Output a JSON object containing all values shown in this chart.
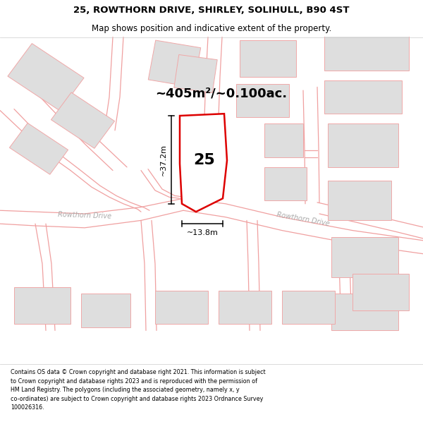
{
  "title_line1": "25, ROWTHORN DRIVE, SHIRLEY, SOLIHULL, B90 4ST",
  "title_line2": "Map shows position and indicative extent of the property.",
  "area_text": "~405m²/~0.100ac.",
  "property_number": "25",
  "dim_vertical": "~37.2m",
  "dim_horizontal": "~13.8m",
  "road_name_left": "Rowthorn Drive",
  "road_name_right": "Rowthorn Drive",
  "footer_text": "Contains OS data © Crown copyright and database right 2021. This information is subject\nto Crown copyright and database rights 2023 and is reproduced with the permission of\nHM Land Registry. The polygons (including the associated geometry, namely x, y\nco-ordinates) are subject to Crown copyright and database rights 2023 Ordnance Survey\n100026316.",
  "bg_color": "#f2f0ed",
  "property_fill": "#ffffff",
  "property_edge": "#dd0000",
  "building_fill": "#dedede",
  "building_edge": "#f0a8a8",
  "road_line_color": "#f0a0a0",
  "road_fill": "#ffffff",
  "title_fontsize": 9.5,
  "subtitle_fontsize": 8.5,
  "area_fontsize": 13,
  "number_fontsize": 16,
  "dim_fontsize": 8,
  "road_fontsize": 7,
  "footer_fontsize": 5.8
}
